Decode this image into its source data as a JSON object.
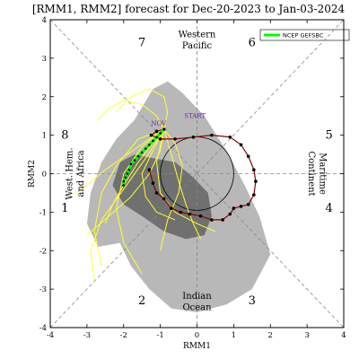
{
  "chart_data": {
    "type": "line",
    "title": "[RMM1, RMM2] forecast for Dec-20-2023 to Jan-03-2024",
    "xlabel": "RMM1",
    "ylabel": "RMM2",
    "xlim": [
      -4,
      4
    ],
    "ylim": [
      -4,
      4
    ],
    "xticks": [
      "-4",
      "-3",
      "-2",
      "-1",
      "0",
      "1",
      "2",
      "3",
      "4"
    ],
    "yticks": [
      "4",
      "3",
      "2",
      "1",
      "0",
      "-1",
      "-2",
      "-3",
      "-4"
    ],
    "phases": [
      "1",
      "2",
      "3",
      "4",
      "5",
      "6",
      "7",
      "8"
    ],
    "regions": {
      "top": [
        "Western",
        "Pacific"
      ],
      "bottom": [
        "Indian",
        "Ocean"
      ],
      "left": [
        "West. Hem.",
        "and Africa"
      ],
      "right": [
        "Maritime",
        "Continent"
      ]
    },
    "legend": {
      "placement": "top-right",
      "entries": [
        "NCEP GEFSBC"
      ]
    },
    "annotations": [
      "START",
      "NOV"
    ],
    "colors": {
      "ensemble_members": "#ffff33",
      "ensemble_mean": "#00ff00",
      "observed": "#8b0000",
      "spread_outer": "#b8b8b8",
      "spread_inner": "#707070"
    },
    "series": [
      {
        "name": "observed",
        "x": [
          -0.9,
          -1.1,
          -1.25,
          -1.0,
          -0.6,
          -0.1,
          0.4,
          0.9,
          1.2,
          1.4,
          1.55,
          1.6,
          1.55,
          1.4,
          1.2,
          1.0,
          0.9,
          0.7,
          0.4,
          0.1,
          -0.2,
          -0.45,
          -0.7,
          -0.9,
          -1.1,
          -1.2,
          -1.3
        ],
        "y": [
          1.15,
          1.1,
          1.0,
          0.9,
          0.9,
          0.95,
          1.0,
          0.95,
          0.75,
          0.45,
          0.1,
          -0.2,
          -0.55,
          -0.8,
          -0.85,
          -0.9,
          -1.05,
          -1.2,
          -1.2,
          -1.1,
          -1.05,
          -1.0,
          -0.9,
          -0.65,
          -0.5,
          -0.25,
          0.1
        ]
      },
      {
        "name": "NCEP GEFSBC",
        "x": [
          -0.9,
          -1.0,
          -1.1,
          -1.2,
          -1.3,
          -1.4,
          -1.5,
          -1.6,
          -1.7,
          -1.8,
          -1.85,
          -1.9,
          -1.95,
          -2.0,
          -2.0
        ],
        "y": [
          1.15,
          1.05,
          0.95,
          0.85,
          0.75,
          0.65,
          0.55,
          0.45,
          0.35,
          0.25,
          0.1,
          0.0,
          -0.1,
          -0.2,
          -0.3
        ]
      },
      {
        "name": "member",
        "x": [
          -0.9,
          -1.2,
          -1.6,
          -2.0,
          -2.3,
          -2.5
        ],
        "y": [
          1.15,
          0.8,
          0.3,
          -0.3,
          -0.8,
          -1.3
        ]
      },
      {
        "name": "member",
        "x": [
          -0.9,
          -1.0,
          -1.3,
          -1.8,
          -2.4,
          -3.0
        ],
        "y": [
          1.15,
          0.6,
          0.0,
          -0.6,
          -1.1,
          -1.6
        ]
      },
      {
        "name": "member",
        "x": [
          -0.9,
          -1.3,
          -1.9,
          -2.5,
          -3.0,
          -3.3
        ],
        "y": [
          1.15,
          0.9,
          0.5,
          0.1,
          -0.3,
          -0.5
        ]
      },
      {
        "name": "member",
        "x": [
          -0.9,
          -0.7,
          -0.5,
          -0.3,
          -0.1,
          0.1
        ],
        "y": [
          1.15,
          0.5,
          -0.2,
          -0.8,
          -1.3,
          -1.7
        ]
      },
      {
        "name": "member",
        "x": [
          -0.9,
          -1.1,
          -1.5,
          -2.0,
          -2.4,
          -2.7
        ],
        "y": [
          1.15,
          1.5,
          1.8,
          1.9,
          1.7,
          1.4
        ]
      },
      {
        "name": "member",
        "x": [
          -0.9,
          -0.6,
          -0.4,
          -0.5,
          -0.8,
          -1.0
        ],
        "y": [
          1.15,
          0.8,
          0.2,
          -0.5,
          -1.2,
          -2.0
        ]
      },
      {
        "name": "member",
        "x": [
          -0.9,
          -1.4,
          -2.0,
          -2.6,
          -2.9,
          -2.8
        ],
        "y": [
          1.15,
          0.4,
          -0.4,
          -1.2,
          -2.0,
          -2.8
        ]
      },
      {
        "name": "member",
        "x": [
          -0.9,
          -1.2,
          -1.5,
          -1.4,
          -1.1,
          -0.6
        ],
        "y": [
          1.15,
          0.6,
          0.0,
          -0.6,
          -1.0,
          -1.2
        ]
      },
      {
        "name": "member",
        "x": [
          -0.9,
          -1.6,
          -2.2,
          -2.6,
          -2.8,
          -2.6
        ],
        "y": [
          1.15,
          0.9,
          0.2,
          -0.5,
          -1.5,
          -2.4
        ]
      },
      {
        "name": "member",
        "x": [
          -0.9,
          -0.8,
          -0.9,
          -1.3,
          -1.8,
          -2.2
        ],
        "y": [
          1.15,
          1.6,
          2.0,
          2.2,
          2.0,
          1.6
        ]
      },
      {
        "name": "member",
        "x": [
          -0.9,
          -1.5,
          -2.0,
          -2.2,
          -2.0,
          -1.5
        ],
        "y": [
          1.15,
          0.7,
          0.0,
          -0.9,
          -1.8,
          -2.6
        ]
      },
      {
        "name": "member",
        "x": [
          -0.9,
          -1.1,
          -1.0,
          -0.6,
          0.0,
          0.5
        ],
        "y": [
          1.15,
          0.3,
          -0.5,
          -1.0,
          -1.3,
          -1.5
        ]
      }
    ]
  }
}
